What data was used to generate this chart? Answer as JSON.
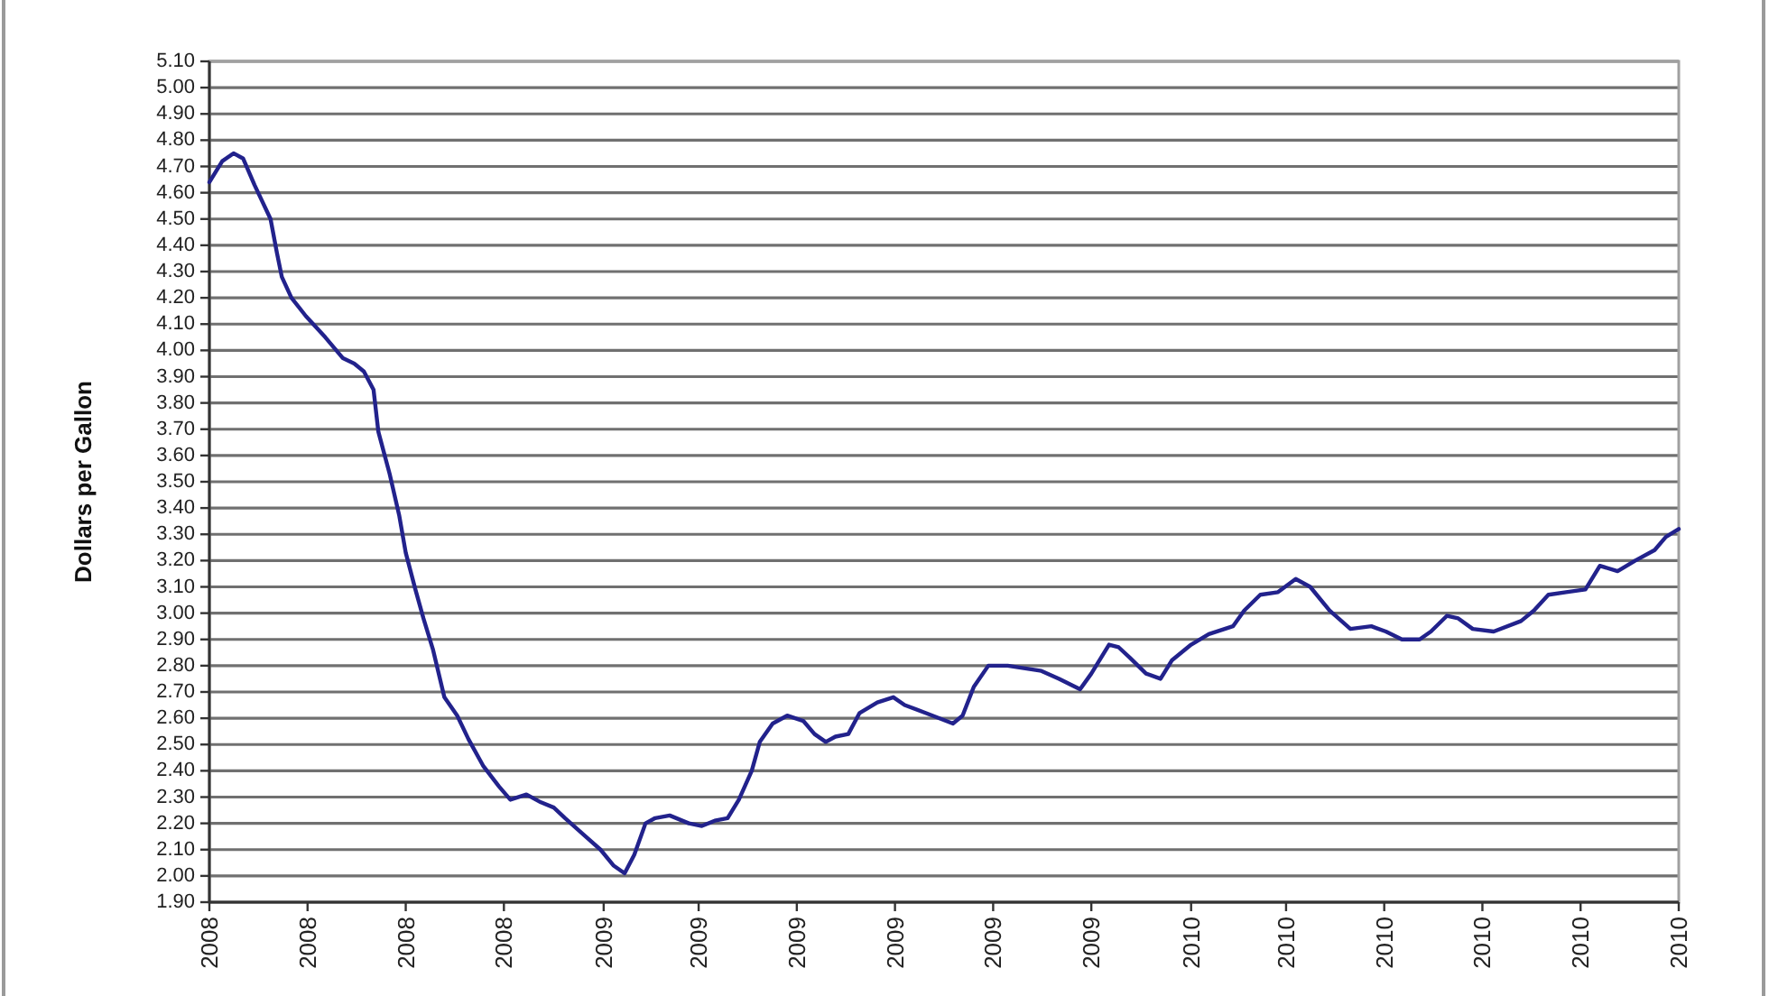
{
  "chart_data": {
    "type": "line",
    "ylabel": "Dollars per Gallon",
    "x": [
      "2008-06-01",
      "2008-06-09",
      "2008-06-16",
      "2008-06-22",
      "2008-06-29",
      "2008-07-09",
      "2008-07-13",
      "2008-07-16",
      "2008-07-22",
      "2008-07-31",
      "2008-08-12",
      "2008-08-23",
      "2008-08-30",
      "2008-09-05",
      "2008-09-11",
      "2008-09-14",
      "2008-09-21",
      "2008-09-27",
      "2008-10-01",
      "2008-10-07",
      "2008-10-12",
      "2008-10-18",
      "2008-10-25",
      "2008-11-02",
      "2008-11-09",
      "2008-11-18",
      "2008-11-28",
      "2008-12-05",
      "2008-12-15",
      "2008-12-24",
      "2009-01-01",
      "2009-01-08",
      "2009-01-19",
      "2009-01-30",
      "2009-02-07",
      "2009-02-14",
      "2009-02-20",
      "2009-02-27",
      "2009-03-05",
      "2009-03-14",
      "2009-03-26",
      "2009-04-03",
      "2009-04-11",
      "2009-04-19",
      "2009-04-26",
      "2009-05-04",
      "2009-05-09",
      "2009-05-17",
      "2009-05-26",
      "2009-06-05",
      "2009-06-12",
      "2009-06-19",
      "2009-06-25",
      "2009-07-03",
      "2009-07-10",
      "2009-07-21",
      "2009-07-31",
      "2009-08-07",
      "2009-08-20",
      "2009-09-06",
      "2009-09-12",
      "2009-09-19",
      "2009-09-28",
      "2009-10-10",
      "2009-10-31",
      "2009-11-11",
      "2009-11-24",
      "2009-12-01",
      "2009-12-12",
      "2009-12-18",
      "2009-12-25",
      "2010-01-04",
      "2010-01-13",
      "2010-01-20",
      "2010-02-01",
      "2010-02-12",
      "2010-02-27",
      "2010-03-06",
      "2010-03-16",
      "2010-03-27",
      "2010-04-07",
      "2010-04-16",
      "2010-04-28",
      "2010-05-11",
      "2010-05-24",
      "2010-06-02",
      "2010-06-12",
      "2010-06-23",
      "2010-06-30",
      "2010-07-10",
      "2010-07-17",
      "2010-07-26",
      "2010-08-08",
      "2010-08-25",
      "2010-09-02",
      "2010-09-11",
      "2010-09-22",
      "2010-10-04",
      "2010-10-13",
      "2010-10-24",
      "2010-11-04",
      "2010-11-16",
      "2010-11-23",
      "2010-12-01"
    ],
    "series": [
      {
        "color": "#22228c",
        "values": [
          4.64,
          4.72,
          4.75,
          4.73,
          4.63,
          4.5,
          4.37,
          4.28,
          4.2,
          4.13,
          4.05,
          3.97,
          3.95,
          3.92,
          3.85,
          3.69,
          3.53,
          3.37,
          3.23,
          3.09,
          2.98,
          2.86,
          2.68,
          2.61,
          2.52,
          2.42,
          2.34,
          2.29,
          2.31,
          2.28,
          2.26,
          2.22,
          2.16,
          2.1,
          2.04,
          2.01,
          2.08,
          2.2,
          2.22,
          2.23,
          2.2,
          2.19,
          2.21,
          2.22,
          2.29,
          2.4,
          2.51,
          2.58,
          2.61,
          2.59,
          2.54,
          2.51,
          2.53,
          2.54,
          2.62,
          2.66,
          2.68,
          2.65,
          2.62,
          2.58,
          2.61,
          2.72,
          2.8,
          2.8,
          2.78,
          2.75,
          2.71,
          2.77,
          2.88,
          2.87,
          2.83,
          2.77,
          2.75,
          2.82,
          2.88,
          2.92,
          2.95,
          3.01,
          3.07,
          3.08,
          3.13,
          3.1,
          3.01,
          2.94,
          2.95,
          2.93,
          2.9,
          2.9,
          2.93,
          2.99,
          2.98,
          2.94,
          2.93,
          2.97,
          3.01,
          3.07,
          3.08,
          3.09,
          3.18,
          3.16,
          3.2,
          3.24,
          3.29,
          3.32
        ]
      }
    ],
    "xlim": [
      "2008-06-01",
      "2010-12-01"
    ],
    "xticks": [
      {
        "value": "2008-06-01",
        "label": "2008"
      },
      {
        "value": "2008-08-01",
        "label": "2008"
      },
      {
        "value": "2008-10-01",
        "label": "2008"
      },
      {
        "value": "2008-12-01",
        "label": "2008"
      },
      {
        "value": "2009-02-01",
        "label": "2009"
      },
      {
        "value": "2009-04-01",
        "label": "2009"
      },
      {
        "value": "2009-06-01",
        "label": "2009"
      },
      {
        "value": "2009-08-01",
        "label": "2009"
      },
      {
        "value": "2009-10-01",
        "label": "2009"
      },
      {
        "value": "2009-12-01",
        "label": "2009"
      },
      {
        "value": "2010-02-01",
        "label": "2010"
      },
      {
        "value": "2010-04-01",
        "label": "2010"
      },
      {
        "value": "2010-06-01",
        "label": "2010"
      },
      {
        "value": "2010-08-01",
        "label": "2010"
      },
      {
        "value": "2010-10-01",
        "label": "2010"
      },
      {
        "value": "2010-12-01",
        "label": "2010"
      }
    ],
    "ylim": [
      1.9,
      5.1
    ],
    "yticks": [
      {
        "value": 1.9,
        "label": "1.90"
      },
      {
        "value": 2,
        "label": "2.00"
      },
      {
        "value": 2.1,
        "label": "2.10"
      },
      {
        "value": 2.2,
        "label": "2.20"
      },
      {
        "value": 2.3,
        "label": "2.30"
      },
      {
        "value": 2.4,
        "label": "2.40"
      },
      {
        "value": 2.5,
        "label": "2.50"
      },
      {
        "value": 2.6,
        "label": "2.60"
      },
      {
        "value": 2.7,
        "label": "2.70"
      },
      {
        "value": 2.8,
        "label": "2.80"
      },
      {
        "value": 2.9,
        "label": "2.90"
      },
      {
        "value": 3,
        "label": "3.00"
      },
      {
        "value": 3.1,
        "label": "3.10"
      },
      {
        "value": 3.2,
        "label": "3.20"
      },
      {
        "value": 3.3,
        "label": "3.30"
      },
      {
        "value": 3.4,
        "label": "3.40"
      },
      {
        "value": 3.5,
        "label": "3.50"
      },
      {
        "value": 3.6,
        "label": "3.60"
      },
      {
        "value": 3.7,
        "label": "3.70"
      },
      {
        "value": 3.8,
        "label": "3.80"
      },
      {
        "value": 3.9,
        "label": "3.90"
      },
      {
        "value": 4,
        "label": "4.00"
      },
      {
        "value": 4.1,
        "label": "4.10"
      },
      {
        "value": 4.2,
        "label": "4.20"
      },
      {
        "value": 4.3,
        "label": "4.30"
      },
      {
        "value": 4.4,
        "label": "4.40"
      },
      {
        "value": 4.5,
        "label": "4.50"
      },
      {
        "value": 4.6,
        "label": "4.60"
      },
      {
        "value": 4.7,
        "label": "4.70"
      },
      {
        "value": 4.8,
        "label": "4.80"
      },
      {
        "value": 4.9,
        "label": "4.90"
      },
      {
        "value": 5,
        "label": "5.00"
      },
      {
        "value": 5.1,
        "label": "5.10"
      }
    ],
    "grid": "y",
    "line_style": "solid"
  }
}
